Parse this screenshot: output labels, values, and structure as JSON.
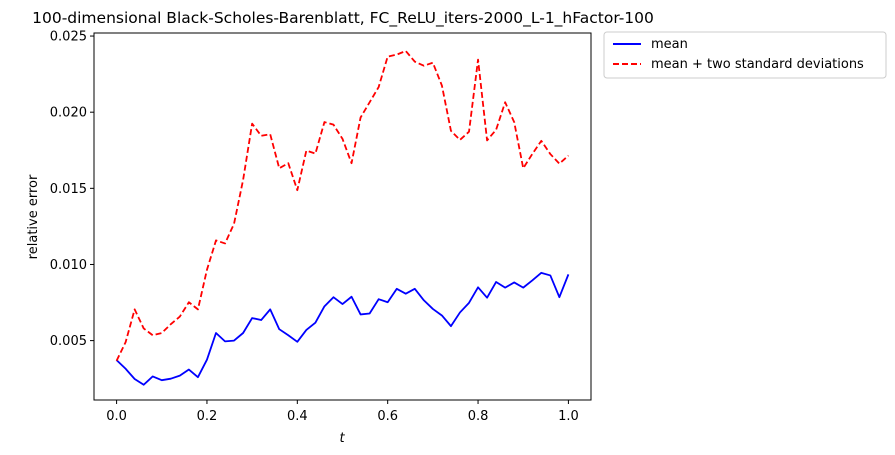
{
  "chart_data": {
    "type": "line",
    "title": "100-dimensional Black-Scholes-Barenblatt, FC_ReLU_iters-2000_L-1_hFactor-100",
    "xlabel": "t",
    "ylabel": "relative error",
    "xlim": [
      -0.05,
      1.05
    ],
    "ylim": [
      0.0011,
      0.0252
    ],
    "xticks": [
      0.0,
      0.2,
      0.4,
      0.6,
      0.8,
      1.0
    ],
    "xtick_labels": [
      "0.0",
      "0.2",
      "0.4",
      "0.6",
      "0.8",
      "1.0"
    ],
    "yticks": [
      0.005,
      0.01,
      0.015,
      0.02,
      0.025
    ],
    "ytick_labels": [
      "0.005",
      "0.010",
      "0.015",
      "0.020",
      "0.025"
    ],
    "grid": false,
    "legend_position": "outside top-right",
    "x": [
      0.0,
      0.02,
      0.04,
      0.06,
      0.08,
      0.1,
      0.12,
      0.14,
      0.16,
      0.18,
      0.2,
      0.22,
      0.24,
      0.26,
      0.28,
      0.3,
      0.32,
      0.34,
      0.36,
      0.38,
      0.4,
      0.42,
      0.44,
      0.46,
      0.48,
      0.5,
      0.52,
      0.54,
      0.56,
      0.58,
      0.6,
      0.62,
      0.64,
      0.66,
      0.68,
      0.7,
      0.72,
      0.74,
      0.76,
      0.78,
      0.8,
      0.82,
      0.84,
      0.86,
      0.88,
      0.9,
      0.92,
      0.94,
      0.96,
      0.98,
      1.0
    ],
    "series": [
      {
        "name": "mean",
        "color": "#0000ff",
        "dash": "solid",
        "values": [
          0.00372,
          0.00315,
          0.00248,
          0.0021,
          0.00265,
          0.0024,
          0.0025,
          0.0027,
          0.0031,
          0.0026,
          0.00375,
          0.0055,
          0.00495,
          0.005,
          0.0055,
          0.00648,
          0.00635,
          0.00705,
          0.00575,
          0.00535,
          0.00492,
          0.0057,
          0.00618,
          0.00725,
          0.00785,
          0.0074,
          0.00788,
          0.00672,
          0.00678,
          0.00772,
          0.00752,
          0.0084,
          0.00808,
          0.0084,
          0.00765,
          0.00708,
          0.00665,
          0.00595,
          0.00685,
          0.00748,
          0.0085,
          0.00782,
          0.00885,
          0.00848,
          0.00882,
          0.00848,
          0.00895,
          0.00945,
          0.00928,
          0.00785,
          0.00935
        ]
      },
      {
        "name": "mean + two standard deviations",
        "color": "#ff0000",
        "dash": "dashed",
        "values": [
          0.00368,
          0.0049,
          0.00705,
          0.0058,
          0.00535,
          0.0055,
          0.00608,
          0.00658,
          0.00752,
          0.00705,
          0.00965,
          0.01158,
          0.01138,
          0.01268,
          0.01555,
          0.01925,
          0.01845,
          0.01855,
          0.01632,
          0.01665,
          0.01488,
          0.01748,
          0.01728,
          0.01935,
          0.01918,
          0.01825,
          0.01665,
          0.01965,
          0.02065,
          0.02165,
          0.02365,
          0.02378,
          0.02402,
          0.02332,
          0.02305,
          0.02325,
          0.02175,
          0.01878,
          0.01818,
          0.01872,
          0.02345,
          0.01815,
          0.01885,
          0.02065,
          0.01935,
          0.01632,
          0.01725,
          0.01812,
          0.01725,
          0.01662,
          0.01715
        ]
      }
    ]
  }
}
